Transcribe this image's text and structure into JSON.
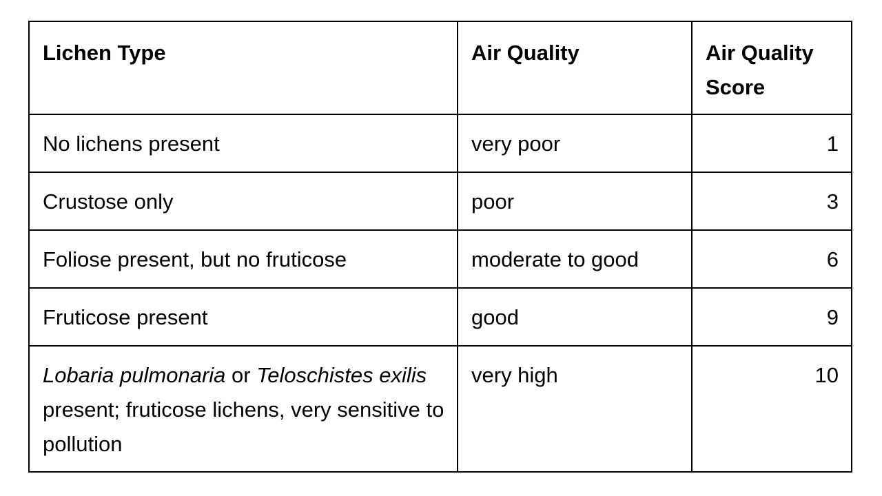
{
  "table": {
    "header": [
      "Lichen Type",
      "Air Quality",
      "Air Quality Score"
    ],
    "rows": [
      {
        "lichen_type": [
          {
            "text": "No lichens present",
            "italic": false
          }
        ],
        "air_quality": "very poor",
        "score": 1
      },
      {
        "lichen_type": [
          {
            "text": "Crustose only",
            "italic": false
          }
        ],
        "air_quality": "poor",
        "score": 3
      },
      {
        "lichen_type": [
          {
            "text": "Foliose present, but no fruticose",
            "italic": false
          }
        ],
        "air_quality": "moderate to good",
        "score": 6
      },
      {
        "lichen_type": [
          {
            "text": "Fruticose present",
            "italic": false
          }
        ],
        "air_quality": "good",
        "score": 9
      },
      {
        "lichen_type": [
          {
            "text": "Lobaria pulmonaria",
            "italic": true
          },
          {
            "text": " or ",
            "italic": false
          },
          {
            "text": "Teloschistes exilis",
            "italic": true
          },
          {
            "text": " present; fruticose lichens, very sensitive to pollution",
            "italic": false
          }
        ],
        "air_quality": "very high",
        "score": 10
      }
    ]
  }
}
